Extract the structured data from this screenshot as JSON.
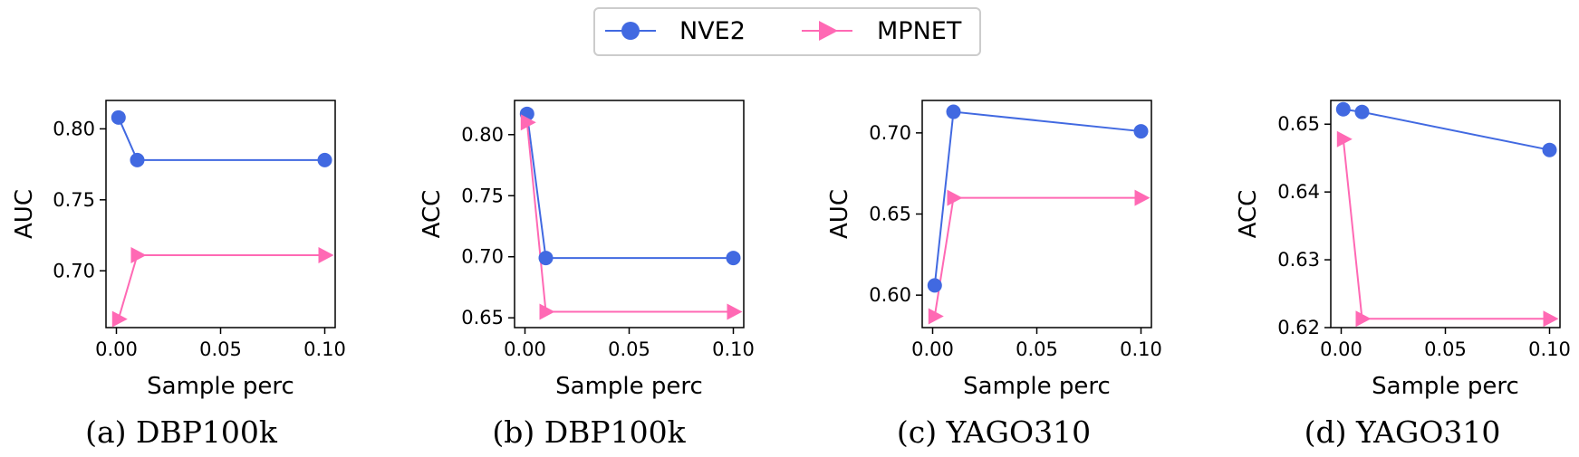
{
  "legend": {
    "placement": "top-center",
    "entries": [
      {
        "label": "NVE2",
        "color": "#4169e1",
        "marker": "circle"
      },
      {
        "label": "MPNET",
        "color": "#ff69b4",
        "marker": "triangle-right"
      }
    ]
  },
  "chart_data": [
    {
      "type": "line",
      "caption": "(a) DBP100k",
      "xlabel": "Sample perc",
      "ylabel": "AUC",
      "xlim": [
        -0.005,
        0.105
      ],
      "ylim": [
        0.66,
        0.82
      ],
      "xticks": [
        0.0,
        0.05,
        0.1
      ],
      "xtick_labels": [
        "0.00",
        "0.05",
        "0.10"
      ],
      "yticks": [
        0.7,
        0.75,
        0.8
      ],
      "ytick_labels": [
        "0.70",
        "0.75",
        "0.80"
      ],
      "x": [
        0.001,
        0.01,
        0.1
      ],
      "series": [
        {
          "name": "NVE2",
          "values": [
            0.808,
            0.778,
            0.778
          ]
        },
        {
          "name": "MPNET",
          "values": [
            0.666,
            0.711,
            0.711
          ]
        }
      ]
    },
    {
      "type": "line",
      "caption": "(b) DBP100k",
      "xlabel": "Sample perc",
      "ylabel": "ACC",
      "xlim": [
        -0.005,
        0.105
      ],
      "ylim": [
        0.642,
        0.828
      ],
      "xticks": [
        0.0,
        0.05,
        0.1
      ],
      "xtick_labels": [
        "0.00",
        "0.05",
        "0.10"
      ],
      "yticks": [
        0.65,
        0.7,
        0.75,
        0.8
      ],
      "ytick_labels": [
        "0.65",
        "0.70",
        "0.75",
        "0.80"
      ],
      "x": [
        0.001,
        0.01,
        0.1
      ],
      "series": [
        {
          "name": "NVE2",
          "values": [
            0.817,
            0.699,
            0.699
          ]
        },
        {
          "name": "MPNET",
          "values": [
            0.81,
            0.655,
            0.655
          ]
        }
      ]
    },
    {
      "type": "line",
      "caption": "(c) YAGO310",
      "xlabel": "Sample perc",
      "ylabel": "AUC",
      "xlim": [
        -0.005,
        0.105
      ],
      "ylim": [
        0.58,
        0.72
      ],
      "xticks": [
        0.0,
        0.05,
        0.1
      ],
      "xtick_labels": [
        "0.00",
        "0.05",
        "0.10"
      ],
      "yticks": [
        0.6,
        0.65,
        0.7
      ],
      "ytick_labels": [
        "0.60",
        "0.65",
        "0.70"
      ],
      "x": [
        0.001,
        0.01,
        0.1
      ],
      "series": [
        {
          "name": "NVE2",
          "values": [
            0.606,
            0.713,
            0.701
          ]
        },
        {
          "name": "MPNET",
          "values": [
            0.587,
            0.66,
            0.66
          ]
        }
      ]
    },
    {
      "type": "line",
      "caption": "(d) YAGO310",
      "xlabel": "Sample perc",
      "ylabel": "ACC",
      "xlim": [
        -0.005,
        0.105
      ],
      "ylim": [
        0.62,
        0.6535
      ],
      "xticks": [
        0.0,
        0.05,
        0.1
      ],
      "xtick_labels": [
        "0.00",
        "0.05",
        "0.10"
      ],
      "yticks": [
        0.62,
        0.63,
        0.64,
        0.65
      ],
      "ytick_labels": [
        "0.62",
        "0.63",
        "0.64",
        "0.65"
      ],
      "x": [
        0.001,
        0.01,
        0.1
      ],
      "series": [
        {
          "name": "NVE2",
          "values": [
            0.6522,
            0.6518,
            0.6462
          ]
        },
        {
          "name": "MPNET",
          "values": [
            0.6478,
            0.6213,
            0.6213
          ]
        }
      ]
    }
  ]
}
